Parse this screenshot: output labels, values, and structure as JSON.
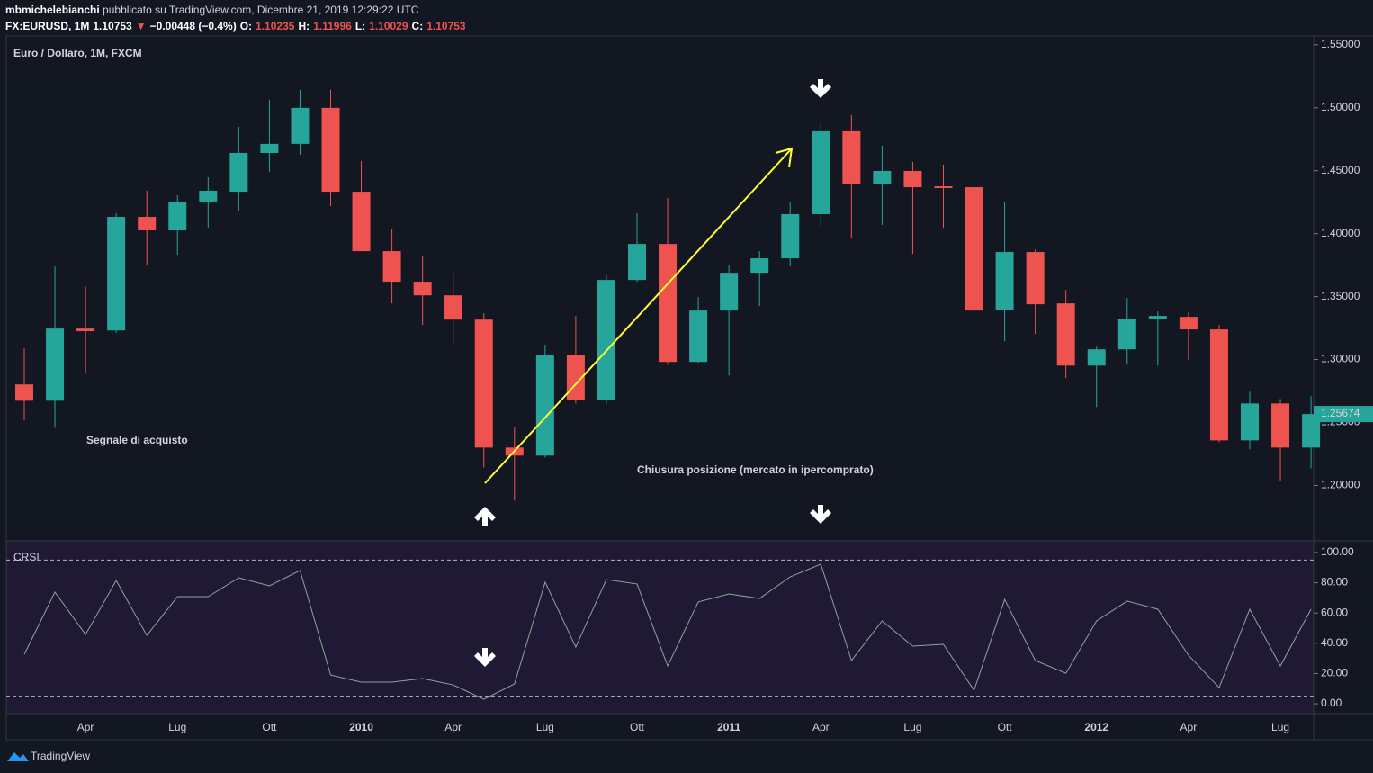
{
  "header": {
    "author": "mbmichelebianchi",
    "line1": "pubblicato su TradingView.com, Dicembre 21, 2019 12:29:22 UTC",
    "line2": [
      {
        "text": "FX:EURUSD, 1M",
        "color": "#ffffff"
      },
      {
        "text": "1.10753",
        "color": "#ffffff"
      },
      {
        "text": "▼",
        "color": "#ef5350"
      },
      {
        "text": "−0.00448 (−0.4%)",
        "color": "#ffffff"
      },
      {
        "text": "O:",
        "color": "#ffffff"
      },
      {
        "text": "1.10235",
        "color": "#ef5350"
      },
      {
        "text": "H:",
        "color": "#ffffff"
      },
      {
        "text": "1.11996",
        "color": "#ef5350"
      },
      {
        "text": "L:",
        "color": "#ffffff"
      },
      {
        "text": "1.10029",
        "color": "#ef5350"
      },
      {
        "text": "C:",
        "color": "#ffffff"
      },
      {
        "text": "1.10753",
        "color": "#ef5350"
      }
    ]
  },
  "chart_data": [
    {
      "type": "candlestick",
      "title": "Euro / Dollaro, 1M, FXCM",
      "categories": [
        null,
        null,
        "Apr",
        null,
        null,
        "Lug",
        null,
        null,
        "Ott",
        null,
        null,
        "2010",
        null,
        null,
        "Apr",
        null,
        null,
        "Lug",
        null,
        null,
        "Ott",
        null,
        null,
        "2011",
        null,
        null,
        "Apr",
        null,
        null,
        "Lug",
        null,
        null,
        "Ott",
        null,
        null,
        "2012",
        null,
        null,
        "Apr",
        null,
        null,
        "Lug",
        null
      ],
      "open": [
        1.2802,
        1.2673,
        1.3246,
        1.3231,
        1.4133,
        1.4026,
        1.4255,
        1.4333,
        1.4641,
        1.4713,
        1.4999,
        1.4333,
        1.3861,
        1.3618,
        1.351,
        1.3317,
        1.2301,
        1.2237,
        1.3038,
        1.268,
        1.3632,
        1.3918,
        1.2981,
        1.3389,
        1.3689,
        1.3804,
        1.4155,
        1.4813,
        1.4398,
        1.4498,
        1.4376,
        1.4369,
        1.3396,
        1.3854,
        1.3446,
        1.2952,
        1.3081,
        1.3324,
        1.3339,
        1.3239,
        1.2358,
        1.2651,
        1.2301
      ],
      "high": [
        1.3088,
        1.3739,
        1.3582,
        1.4162,
        1.4341,
        1.4305,
        1.4448,
        1.4849,
        1.5063,
        1.5142,
        1.5142,
        1.4577,
        1.4033,
        1.3818,
        1.3689,
        1.3367,
        1.2466,
        1.3117,
        1.3346,
        1.3668,
        1.4162,
        1.4283,
        1.3496,
        1.3747,
        1.3861,
        1.4248,
        1.4885,
        1.4942,
        1.4698,
        1.457,
        1.4548,
        1.4384,
        1.4248,
        1.3875,
        1.3553,
        1.3102,
        1.3489,
        1.3382,
        1.3374,
        1.3274,
        1.2745,
        1.2687,
        1.2709
      ],
      "low": [
        1.2516,
        1.2458,
        1.2888,
        1.321,
        1.3747,
        1.3832,
        1.4047,
        1.4176,
        1.4491,
        1.4627,
        1.4219,
        1.3861,
        1.3446,
        1.3274,
        1.3117,
        1.2143,
        1.1879,
        1.2222,
        1.2651,
        1.2651,
        1.3618,
        1.2959,
        1.2974,
        1.2873,
        1.3425,
        1.3739,
        1.4061,
        1.3961,
        1.4069,
        1.384,
        1.4047,
        1.3367,
        1.3145,
        1.3203,
        1.2852,
        1.2623,
        1.2959,
        1.2952,
        1.2995,
        1.2344,
        1.2287,
        1.2036,
        1.2136
      ],
      "close": [
        1.2673,
        1.3246,
        1.3225,
        1.4133,
        1.4026,
        1.4255,
        1.4341,
        1.4641,
        1.4713,
        1.4999,
        1.4333,
        1.3861,
        1.3618,
        1.351,
        1.3317,
        1.2301,
        1.2237,
        1.3038,
        1.268,
        1.3632,
        1.3918,
        1.2981,
        1.3389,
        1.3689,
        1.3804,
        1.4155,
        1.4813,
        1.4398,
        1.4498,
        1.4369,
        1.4362,
        1.3389,
        1.3854,
        1.3439,
        1.2952,
        1.3081,
        1.3324,
        1.3346,
        1.3239,
        1.2358,
        1.2651,
        1.2301,
        1.2567
      ],
      "up_color": "#26a69a",
      "down_color": "#ef5350",
      "ylim": [
        1.156,
        1.557
      ],
      "yticks": [
        {
          "value": 1.2,
          "label": "1.20000"
        },
        {
          "value": 1.25,
          "label": "1.25000"
        },
        {
          "value": 1.3,
          "label": "1.30000"
        },
        {
          "value": 1.35,
          "label": "1.35000"
        },
        {
          "value": 1.4,
          "label": "1.40000"
        },
        {
          "value": 1.45,
          "label": "1.45000"
        },
        {
          "value": 1.5,
          "label": "1.50000"
        },
        {
          "value": 1.55,
          "label": "1.55000"
        }
      ],
      "last_price": {
        "value": 1.25674,
        "label": "1.25674"
      },
      "annotations": [
        "Segnale di acquisto",
        "Chiusura posizione (mercato in ipercomprato)"
      ]
    },
    {
      "type": "line",
      "title": "CRSI",
      "color": "#8aa896",
      "values": [
        32.7,
        73.8,
        45.8,
        81.5,
        45.2,
        70.8,
        70.8,
        83.3,
        78,
        88.1,
        19,
        14.3,
        14.3,
        16.7,
        12.5,
        3,
        13.1,
        80.4,
        37.5,
        82.1,
        79.2,
        25,
        67.3,
        72.6,
        69.6,
        83.9,
        92.3,
        28.6,
        54.8,
        38.1,
        39.3,
        8.9,
        69,
        28.6,
        20.2,
        54.8,
        67.9,
        62.5,
        32.1,
        10.7,
        62.5,
        25,
        62.5
      ],
      "ylim": [
        -6.5,
        107.7
      ],
      "yticks": [
        {
          "value": 0,
          "label": "0.00"
        },
        {
          "value": 20,
          "label": "20.00"
        },
        {
          "value": 40,
          "label": "40.00"
        },
        {
          "value": 60,
          "label": "60.00"
        },
        {
          "value": 80,
          "label": "80.00"
        },
        {
          "value": 100,
          "label": "100.00"
        }
      ],
      "bands": [
        95,
        5
      ]
    }
  ],
  "footer": {
    "brand": "TradingView"
  }
}
